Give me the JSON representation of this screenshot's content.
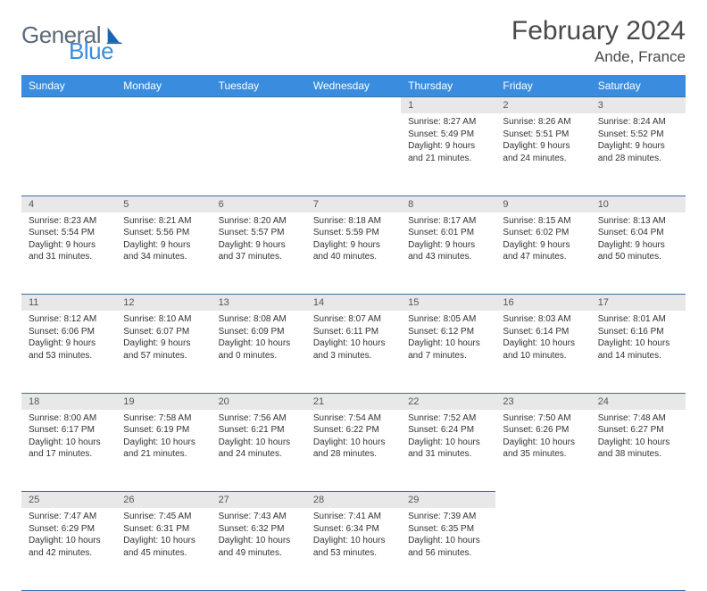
{
  "brand": {
    "general": "General",
    "blue": "Blue",
    "icon_color": "#1766b5"
  },
  "title": "February 2024",
  "location": "Ande, France",
  "colors": {
    "header_bg": "#3a8dde",
    "header_text": "#ffffff",
    "daynum_bg": "#e8e8e8",
    "border": "#3a6ea5",
    "body_text": "#333333"
  },
  "day_headers": [
    "Sunday",
    "Monday",
    "Tuesday",
    "Wednesday",
    "Thursday",
    "Friday",
    "Saturday"
  ],
  "weeks": [
    {
      "nums": [
        "",
        "",
        "",
        "",
        "1",
        "2",
        "3"
      ],
      "cells": [
        null,
        null,
        null,
        null,
        {
          "sunrise": "8:27 AM",
          "sunset": "5:49 PM",
          "daylight": "9 hours and 21 minutes."
        },
        {
          "sunrise": "8:26 AM",
          "sunset": "5:51 PM",
          "daylight": "9 hours and 24 minutes."
        },
        {
          "sunrise": "8:24 AM",
          "sunset": "5:52 PM",
          "daylight": "9 hours and 28 minutes."
        }
      ]
    },
    {
      "nums": [
        "4",
        "5",
        "6",
        "7",
        "8",
        "9",
        "10"
      ],
      "cells": [
        {
          "sunrise": "8:23 AM",
          "sunset": "5:54 PM",
          "daylight": "9 hours and 31 minutes."
        },
        {
          "sunrise": "8:21 AM",
          "sunset": "5:56 PM",
          "daylight": "9 hours and 34 minutes."
        },
        {
          "sunrise": "8:20 AM",
          "sunset": "5:57 PM",
          "daylight": "9 hours and 37 minutes."
        },
        {
          "sunrise": "8:18 AM",
          "sunset": "5:59 PM",
          "daylight": "9 hours and 40 minutes."
        },
        {
          "sunrise": "8:17 AM",
          "sunset": "6:01 PM",
          "daylight": "9 hours and 43 minutes."
        },
        {
          "sunrise": "8:15 AM",
          "sunset": "6:02 PM",
          "daylight": "9 hours and 47 minutes."
        },
        {
          "sunrise": "8:13 AM",
          "sunset": "6:04 PM",
          "daylight": "9 hours and 50 minutes."
        }
      ]
    },
    {
      "nums": [
        "11",
        "12",
        "13",
        "14",
        "15",
        "16",
        "17"
      ],
      "cells": [
        {
          "sunrise": "8:12 AM",
          "sunset": "6:06 PM",
          "daylight": "9 hours and 53 minutes."
        },
        {
          "sunrise": "8:10 AM",
          "sunset": "6:07 PM",
          "daylight": "9 hours and 57 minutes."
        },
        {
          "sunrise": "8:08 AM",
          "sunset": "6:09 PM",
          "daylight": "10 hours and 0 minutes."
        },
        {
          "sunrise": "8:07 AM",
          "sunset": "6:11 PM",
          "daylight": "10 hours and 3 minutes."
        },
        {
          "sunrise": "8:05 AM",
          "sunset": "6:12 PM",
          "daylight": "10 hours and 7 minutes."
        },
        {
          "sunrise": "8:03 AM",
          "sunset": "6:14 PM",
          "daylight": "10 hours and 10 minutes."
        },
        {
          "sunrise": "8:01 AM",
          "sunset": "6:16 PM",
          "daylight": "10 hours and 14 minutes."
        }
      ]
    },
    {
      "nums": [
        "18",
        "19",
        "20",
        "21",
        "22",
        "23",
        "24"
      ],
      "cells": [
        {
          "sunrise": "8:00 AM",
          "sunset": "6:17 PM",
          "daylight": "10 hours and 17 minutes."
        },
        {
          "sunrise": "7:58 AM",
          "sunset": "6:19 PM",
          "daylight": "10 hours and 21 minutes."
        },
        {
          "sunrise": "7:56 AM",
          "sunset": "6:21 PM",
          "daylight": "10 hours and 24 minutes."
        },
        {
          "sunrise": "7:54 AM",
          "sunset": "6:22 PM",
          "daylight": "10 hours and 28 minutes."
        },
        {
          "sunrise": "7:52 AM",
          "sunset": "6:24 PM",
          "daylight": "10 hours and 31 minutes."
        },
        {
          "sunrise": "7:50 AM",
          "sunset": "6:26 PM",
          "daylight": "10 hours and 35 minutes."
        },
        {
          "sunrise": "7:48 AM",
          "sunset": "6:27 PM",
          "daylight": "10 hours and 38 minutes."
        }
      ]
    },
    {
      "nums": [
        "25",
        "26",
        "27",
        "28",
        "29",
        "",
        ""
      ],
      "cells": [
        {
          "sunrise": "7:47 AM",
          "sunset": "6:29 PM",
          "daylight": "10 hours and 42 minutes."
        },
        {
          "sunrise": "7:45 AM",
          "sunset": "6:31 PM",
          "daylight": "10 hours and 45 minutes."
        },
        {
          "sunrise": "7:43 AM",
          "sunset": "6:32 PM",
          "daylight": "10 hours and 49 minutes."
        },
        {
          "sunrise": "7:41 AM",
          "sunset": "6:34 PM",
          "daylight": "10 hours and 53 minutes."
        },
        {
          "sunrise": "7:39 AM",
          "sunset": "6:35 PM",
          "daylight": "10 hours and 56 minutes."
        },
        null,
        null
      ]
    }
  ],
  "labels": {
    "sunrise": "Sunrise: ",
    "sunset": "Sunset: ",
    "daylight": "Daylight: "
  }
}
